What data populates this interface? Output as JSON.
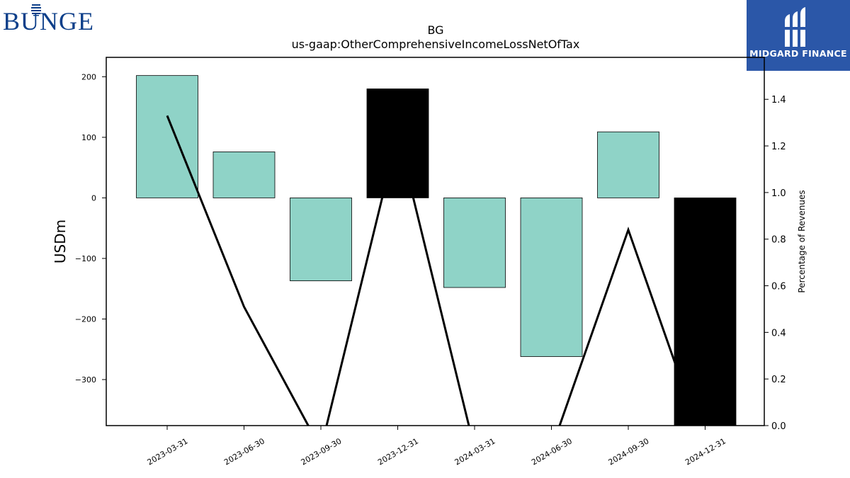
{
  "logos": {
    "left_text": "BUNGE",
    "left_color": "#0d3f8a",
    "right_text": "MIDGARD FINANCE",
    "right_bg": "#2b57a8"
  },
  "chart_data": {
    "type": "bar",
    "title": "BG",
    "subtitle": "us-gaap:OtherComprehensiveIncomeLossNetOfTax",
    "ylabel": "USDm",
    "y2label": "Percentage of Revenues",
    "categories": [
      "2023-03-31",
      "2023-06-30",
      "2023-09-30",
      "2023-12-31",
      "2024-03-31",
      "2024-06-30",
      "2024-09-30",
      "2024-12-31"
    ],
    "values": [
      202,
      76,
      -137,
      180,
      -148,
      -262,
      109,
      -380
    ],
    "bar_colors": [
      "#8fd3c7",
      "#8fd3c7",
      "#8fd3c7",
      "#000000",
      "#8fd3c7",
      "#8fd3c7",
      "#8fd3c7",
      "#000000"
    ],
    "line_series": {
      "axis": "right",
      "values": [
        1.33,
        0.51,
        -0.1,
        1.25,
        -0.1,
        -0.1,
        0.84,
        -0.1
      ]
    },
    "ylim": [
      -376,
      232
    ],
    "yticks": [
      200,
      100,
      0,
      -100,
      -200,
      -300
    ],
    "y2lim": [
      0.0,
      1.58
    ],
    "y2ticks": [
      0.0,
      0.2,
      0.4,
      0.6,
      0.8,
      1.0,
      1.2,
      1.4
    ],
    "grid": false
  }
}
